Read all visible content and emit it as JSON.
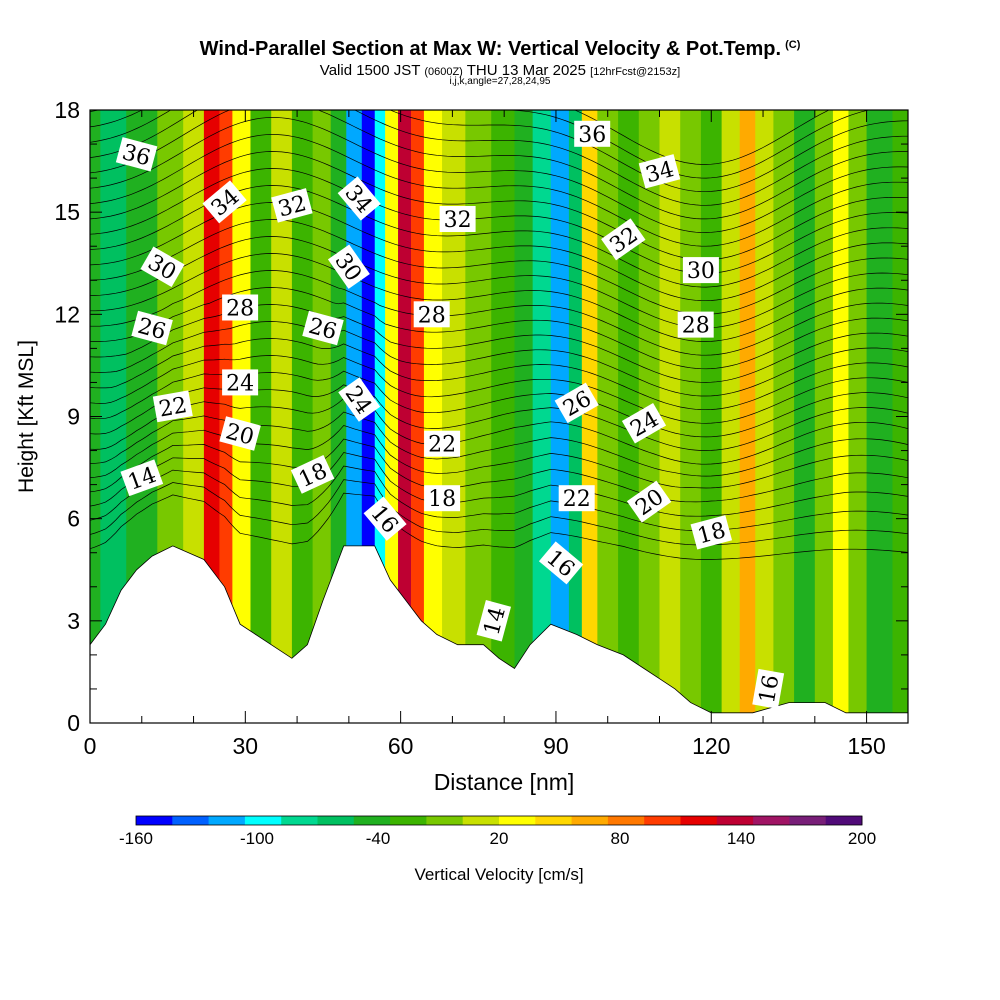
{
  "header": {
    "title": "Wind-Parallel Section at Max W: Vertical Velocity & Pot.Temp.",
    "copyright": "(C)",
    "valid_main": "Valid 1500 JST",
    "valid_utc": "(0600Z)",
    "valid_date": "THU 13 Mar 2025",
    "forecast": "[12hrFcst@2153z]",
    "indices": "i,j,k,angle=27,28,24,95"
  },
  "chart_data": {
    "type": "heatmap",
    "title": "Wind-Parallel Section at Max W: Vertical Velocity & Pot.Temp.",
    "xlabel": "Distance [nm]",
    "ylabel": "Height [Kft MSL]",
    "xlim": [
      0,
      158
    ],
    "ylim": [
      0,
      18
    ],
    "xticks": [
      0,
      30,
      60,
      90,
      120,
      150
    ],
    "yticks": [
      0,
      3,
      6,
      9,
      12,
      15,
      18
    ],
    "grid": false,
    "colorbar": {
      "label": "Vertical Velocity [cm/s]",
      "min": -160,
      "max": 200,
      "step": 20,
      "tick_labels": [
        "-160",
        "-100",
        "-40",
        "20",
        "80",
        "140",
        "200"
      ],
      "colors": [
        "#0000ff",
        "#0060ff",
        "#00a8ff",
        "#00ffff",
        "#00d890",
        "#00c060",
        "#20b020",
        "#3cb400",
        "#78c800",
        "#c8e000",
        "#ffff00",
        "#ffd700",
        "#ffaa00",
        "#ff7800",
        "#ff3c00",
        "#e60000",
        "#be0032",
        "#a01464",
        "#781e78",
        "#500a78"
      ]
    },
    "vertical_velocity_columns": [
      {
        "x": 0,
        "w": -40
      },
      {
        "x": 4,
        "w": -50
      },
      {
        "x": 10,
        "w": -30
      },
      {
        "x": 16,
        "w": 0
      },
      {
        "x": 20,
        "w": 30
      },
      {
        "x": 24,
        "w": 150
      },
      {
        "x": 26,
        "w": 120
      },
      {
        "x": 29,
        "w": 40
      },
      {
        "x": 33,
        "w": -10
      },
      {
        "x": 37,
        "w": 20
      },
      {
        "x": 41,
        "w": -20
      },
      {
        "x": 45,
        "w": 0
      },
      {
        "x": 48,
        "w": -40
      },
      {
        "x": 51,
        "w": -110
      },
      {
        "x": 54,
        "w": -160
      },
      {
        "x": 56,
        "w": -100
      },
      {
        "x": 58,
        "w": 40
      },
      {
        "x": 61,
        "w": 160
      },
      {
        "x": 63,
        "w": 120
      },
      {
        "x": 66,
        "w": 40
      },
      {
        "x": 70,
        "w": 20
      },
      {
        "x": 75,
        "w": 0
      },
      {
        "x": 80,
        "w": -10
      },
      {
        "x": 84,
        "w": -40
      },
      {
        "x": 87,
        "w": -70
      },
      {
        "x": 91,
        "w": -120
      },
      {
        "x": 94,
        "w": -60
      },
      {
        "x": 96,
        "w": 60
      },
      {
        "x": 100,
        "w": 0
      },
      {
        "x": 104,
        "w": -20
      },
      {
        "x": 108,
        "w": 10
      },
      {
        "x": 112,
        "w": 20
      },
      {
        "x": 116,
        "w": 0
      },
      {
        "x": 120,
        "w": -20
      },
      {
        "x": 124,
        "w": 20
      },
      {
        "x": 127,
        "w": 80
      },
      {
        "x": 130,
        "w": 30
      },
      {
        "x": 134,
        "w": 0
      },
      {
        "x": 138,
        "w": -30
      },
      {
        "x": 142,
        "w": 10
      },
      {
        "x": 145,
        "w": 50
      },
      {
        "x": 148,
        "w": 0
      },
      {
        "x": 152,
        "w": -30
      },
      {
        "x": 158,
        "w": -10
      }
    ],
    "terrain": [
      [
        0,
        2.3
      ],
      [
        3,
        2.9
      ],
      [
        6,
        3.9
      ],
      [
        9,
        4.5
      ],
      [
        12,
        4.9
      ],
      [
        16,
        5.2
      ],
      [
        22,
        4.8
      ],
      [
        26,
        4.0
      ],
      [
        29,
        2.9
      ],
      [
        32,
        2.6
      ],
      [
        35,
        2.3
      ],
      [
        39,
        1.9
      ],
      [
        42,
        2.3
      ],
      [
        45,
        3.6
      ],
      [
        49,
        5.2
      ],
      [
        55,
        5.2
      ],
      [
        58,
        4.2
      ],
      [
        61,
        3.6
      ],
      [
        64,
        3.0
      ],
      [
        67,
        2.6
      ],
      [
        71,
        2.3
      ],
      [
        76,
        2.3
      ],
      [
        79,
        1.9
      ],
      [
        82,
        1.6
      ],
      [
        85,
        2.3
      ],
      [
        89,
        2.9
      ],
      [
        94,
        2.6
      ],
      [
        98,
        2.3
      ],
      [
        103,
        2.0
      ],
      [
        107,
        1.6
      ],
      [
        110,
        1.3
      ],
      [
        113,
        1.0
      ],
      [
        116,
        0.6
      ],
      [
        120,
        0.3
      ],
      [
        128,
        0.3
      ],
      [
        135,
        0.6
      ],
      [
        142,
        0.6
      ],
      [
        146,
        0.3
      ],
      [
        158,
        0.3
      ]
    ],
    "potential_temperature_labels": [
      {
        "text": "36",
        "x": 9,
        "y": 16.7,
        "angle": 15
      },
      {
        "text": "34",
        "x": 26,
        "y": 15.3,
        "angle": -40
      },
      {
        "text": "32",
        "x": 39,
        "y": 15.2,
        "angle": -15
      },
      {
        "text": "34",
        "x": 52,
        "y": 15.4,
        "angle": 50
      },
      {
        "text": "32",
        "x": 71,
        "y": 14.8,
        "angle": 0
      },
      {
        "text": "36",
        "x": 97,
        "y": 17.3,
        "angle": 0
      },
      {
        "text": "34",
        "x": 110,
        "y": 16.2,
        "angle": -15
      },
      {
        "text": "32",
        "x": 103,
        "y": 14.2,
        "angle": -35
      },
      {
        "text": "30",
        "x": 118,
        "y": 13.3,
        "angle": 0
      },
      {
        "text": "28",
        "x": 117,
        "y": 11.7,
        "angle": 0
      },
      {
        "text": "30",
        "x": 14,
        "y": 13.4,
        "angle": 30
      },
      {
        "text": "28",
        "x": 29,
        "y": 12.2,
        "angle": 0
      },
      {
        "text": "30",
        "x": 50,
        "y": 13.4,
        "angle": 55
      },
      {
        "text": "28",
        "x": 66,
        "y": 12.0,
        "angle": 0
      },
      {
        "text": "26",
        "x": 12,
        "y": 11.6,
        "angle": 15
      },
      {
        "text": "26",
        "x": 45,
        "y": 11.6,
        "angle": 15
      },
      {
        "text": "24",
        "x": 29,
        "y": 10.0,
        "angle": 0
      },
      {
        "text": "24",
        "x": 52,
        "y": 9.5,
        "angle": 55
      },
      {
        "text": "22",
        "x": 16,
        "y": 9.3,
        "angle": -10
      },
      {
        "text": "20",
        "x": 29,
        "y": 8.5,
        "angle": 15
      },
      {
        "text": "22",
        "x": 68,
        "y": 8.2,
        "angle": 0
      },
      {
        "text": "26",
        "x": 94,
        "y": 9.4,
        "angle": -30
      },
      {
        "text": "24",
        "x": 107,
        "y": 8.8,
        "angle": -30
      },
      {
        "text": "18",
        "x": 43,
        "y": 7.3,
        "angle": -25
      },
      {
        "text": "18",
        "x": 68,
        "y": 6.6,
        "angle": 0
      },
      {
        "text": "14",
        "x": 10,
        "y": 7.2,
        "angle": -20
      },
      {
        "text": "16",
        "x": 57,
        "y": 6.0,
        "angle": 50
      },
      {
        "text": "22",
        "x": 94,
        "y": 6.6,
        "angle": 0
      },
      {
        "text": "20",
        "x": 108,
        "y": 6.5,
        "angle": -35
      },
      {
        "text": "18",
        "x": 120,
        "y": 5.6,
        "angle": -15
      },
      {
        "text": "16",
        "x": 91,
        "y": 4.7,
        "angle": 40
      },
      {
        "text": "14",
        "x": 78,
        "y": 3.0,
        "angle": -75
      },
      {
        "text": "16",
        "x": 131,
        "y": 1.0,
        "angle": -80
      }
    ]
  }
}
